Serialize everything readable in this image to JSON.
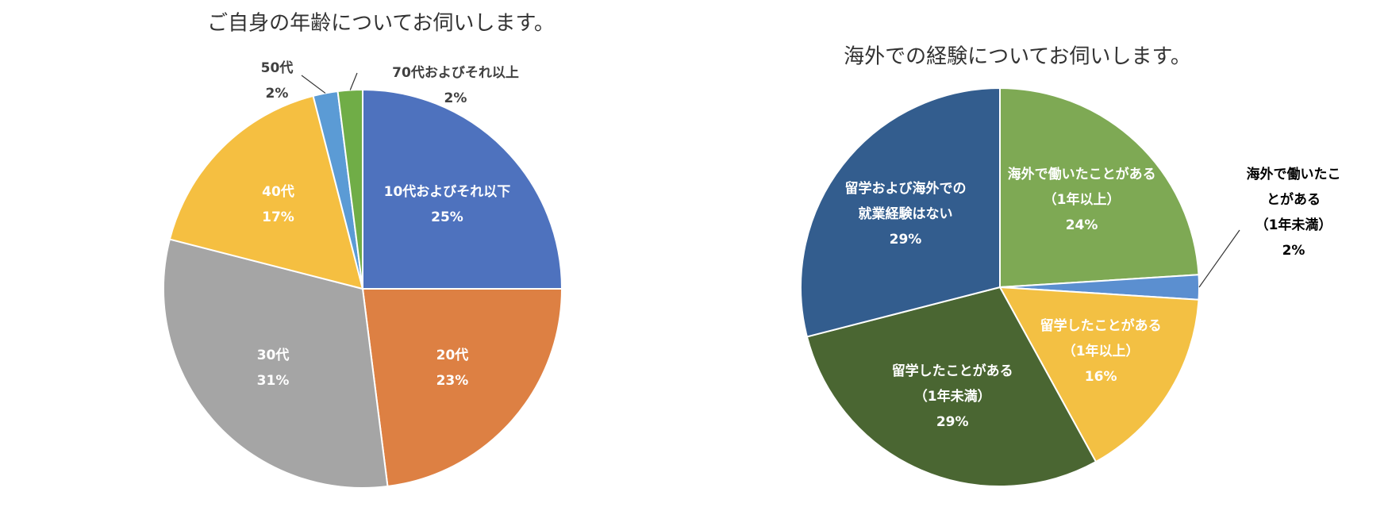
{
  "chart_data": [
    {
      "type": "pie",
      "title": "ご自身の年齢についてお伺いします。",
      "categories": [
        "10代およびそれ以下",
        "20代",
        "30代",
        "40代",
        "50代",
        "70代およびそれ以上"
      ],
      "values": [
        25,
        23,
        31,
        17,
        2,
        2
      ],
      "value_labels": [
        "25%",
        "23%",
        "31%",
        "17%",
        "2%",
        "2%"
      ],
      "colors": [
        "#4e72be",
        "#dd8043",
        "#a5a5a5",
        "#f5bf41",
        "#5b9bd5",
        "#70ad47"
      ]
    },
    {
      "type": "pie",
      "title": "海外での経験についてお伺いします。",
      "categories": [
        "海外で働いたことがある\n（1年以上）",
        "海外で働いたことがある\n（1年未満）",
        "留学したことがある\n（1年以上）",
        "留学したことがある\n（1年未満）",
        "留学および海外での\n就業経験はない"
      ],
      "values": [
        24,
        2,
        16,
        29,
        29
      ],
      "value_labels": [
        "24%",
        "2%",
        "16%",
        "29%",
        "29%"
      ],
      "colors": [
        "#7ea954",
        "#5b8fd0",
        "#f3c043",
        "#4a6632",
        "#335d8e"
      ]
    }
  ]
}
